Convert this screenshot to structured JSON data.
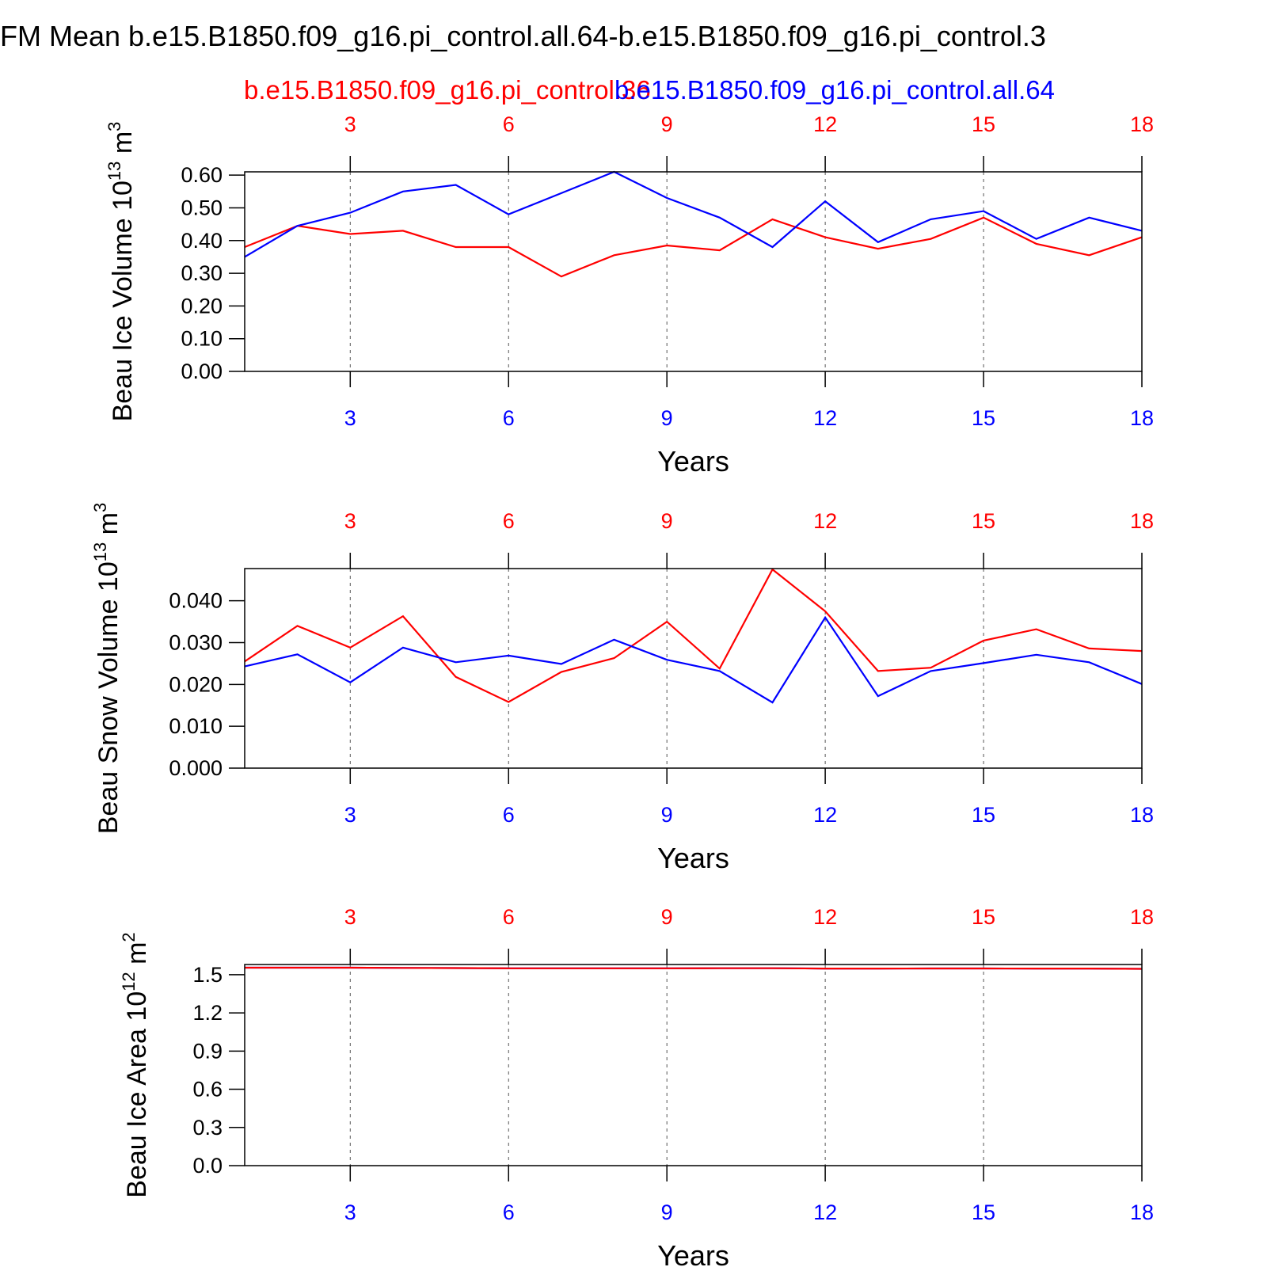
{
  "title": "FM Mean b.e15.B1850.f09_g16.pi_control.all.64-b.e15.B1850.f09_g16.pi_control.3",
  "top_tick_color": "#ff0000",
  "bottom_tick_color": "#0000ff",
  "chart_data": [
    {
      "type": "line",
      "y_label": {
        "text": "Beau Ice Volume 10",
        "exp": "13",
        "unit": " m",
        "unit_exp": "3"
      },
      "x_label": "Years",
      "x": [
        1,
        2,
        3,
        4,
        5,
        6,
        7,
        8,
        9,
        10,
        11,
        12,
        13,
        14,
        15,
        16,
        17,
        18
      ],
      "xlim": [
        1,
        18
      ],
      "xticks": [
        3,
        6,
        9,
        12,
        15,
        18
      ],
      "xgrid": true,
      "ylim": [
        0,
        0.61
      ],
      "yticks": [
        {
          "value": 0,
          "label": "0.00"
        },
        {
          "value": 0.1,
          "label": "0.10"
        },
        {
          "value": 0.2,
          "label": "0.20"
        },
        {
          "value": 0.3,
          "label": "0.30"
        },
        {
          "value": 0.4,
          "label": "0.40"
        },
        {
          "value": 0.5,
          "label": "0.50"
        },
        {
          "value": 0.6,
          "label": "0.60"
        }
      ],
      "series": [
        {
          "name": "b.e15.B1850.f09_g16.pi_control.36",
          "color": "#ff0000",
          "values": [
            0.38,
            0.445,
            0.42,
            0.43,
            0.38,
            0.38,
            0.29,
            0.355,
            0.385,
            0.37,
            0.465,
            0.41,
            0.375,
            0.405,
            0.47,
            0.39,
            0.355,
            0.41
          ]
        },
        {
          "name": "b.e15.B1850.f09_g16.pi_control.all.64",
          "color": "#0000ff",
          "values": [
            0.35,
            0.445,
            0.485,
            0.55,
            0.57,
            0.48,
            0.545,
            0.61,
            0.53,
            0.47,
            0.38,
            0.52,
            0.395,
            0.465,
            0.49,
            0.405,
            0.47,
            0.43
          ]
        }
      ]
    },
    {
      "type": "line",
      "y_label": {
        "text": "Beau Snow Volume 10",
        "exp": "13",
        "unit": " m",
        "unit_exp": "3"
      },
      "x_label": "Years",
      "x": [
        1,
        2,
        3,
        4,
        5,
        6,
        7,
        8,
        9,
        10,
        11,
        12,
        13,
        14,
        15,
        16,
        17,
        18
      ],
      "xlim": [
        1,
        18
      ],
      "xticks": [
        3,
        6,
        9,
        12,
        15,
        18
      ],
      "xgrid": true,
      "ylim": [
        0,
        0.0477
      ],
      "yticks": [
        {
          "value": 0,
          "label": "0.000"
        },
        {
          "value": 0.01,
          "label": "0.010"
        },
        {
          "value": 0.02,
          "label": "0.020"
        },
        {
          "value": 0.03,
          "label": "0.030"
        },
        {
          "value": 0.04,
          "label": "0.040"
        }
      ],
      "series": [
        {
          "color": "#ff0000",
          "values": [
            0.0255,
            0.034,
            0.0288,
            0.0363,
            0.0218,
            0.0158,
            0.023,
            0.0263,
            0.035,
            0.0238,
            0.0475,
            0.0375,
            0.0232,
            0.024,
            0.0305,
            0.0332,
            0.0286,
            0.028
          ]
        },
        {
          "color": "#0000ff",
          "values": [
            0.0243,
            0.0272,
            0.0205,
            0.0288,
            0.0253,
            0.0269,
            0.0249,
            0.0307,
            0.0259,
            0.0232,
            0.0157,
            0.036,
            0.0172,
            0.0232,
            0.0251,
            0.0271,
            0.0253,
            0.0201
          ]
        }
      ]
    },
    {
      "type": "line",
      "y_label": {
        "text": "Beau Ice Area 10",
        "exp": "12",
        "unit": " m",
        "unit_exp": "2"
      },
      "x_label": "Years",
      "x": [
        1,
        2,
        3,
        4,
        5,
        6,
        7,
        8,
        9,
        10,
        11,
        12,
        13,
        14,
        15,
        16,
        17,
        18
      ],
      "xlim": [
        1,
        18
      ],
      "xticks": [
        3,
        6,
        9,
        12,
        15,
        18
      ],
      "xgrid": true,
      "ylim": [
        0,
        1.58
      ],
      "yticks": [
        {
          "value": 0,
          "label": "0.0"
        },
        0.3,
        0.6,
        0.9,
        1.2,
        1.5
      ],
      "series": [
        {
          "color": "#0000ff",
          "values": [
            1.555,
            1.555,
            1.555,
            1.553,
            1.552,
            1.55,
            1.55,
            1.55,
            1.55,
            1.551,
            1.551,
            1.548,
            1.548,
            1.549,
            1.549,
            1.548,
            1.548,
            1.546
          ]
        },
        {
          "color": "#ff0000",
          "values": [
            1.555,
            1.555,
            1.555,
            1.553,
            1.552,
            1.55,
            1.55,
            1.55,
            1.55,
            1.551,
            1.551,
            1.548,
            1.548,
            1.549,
            1.549,
            1.548,
            1.548,
            1.546
          ]
        }
      ]
    }
  ]
}
